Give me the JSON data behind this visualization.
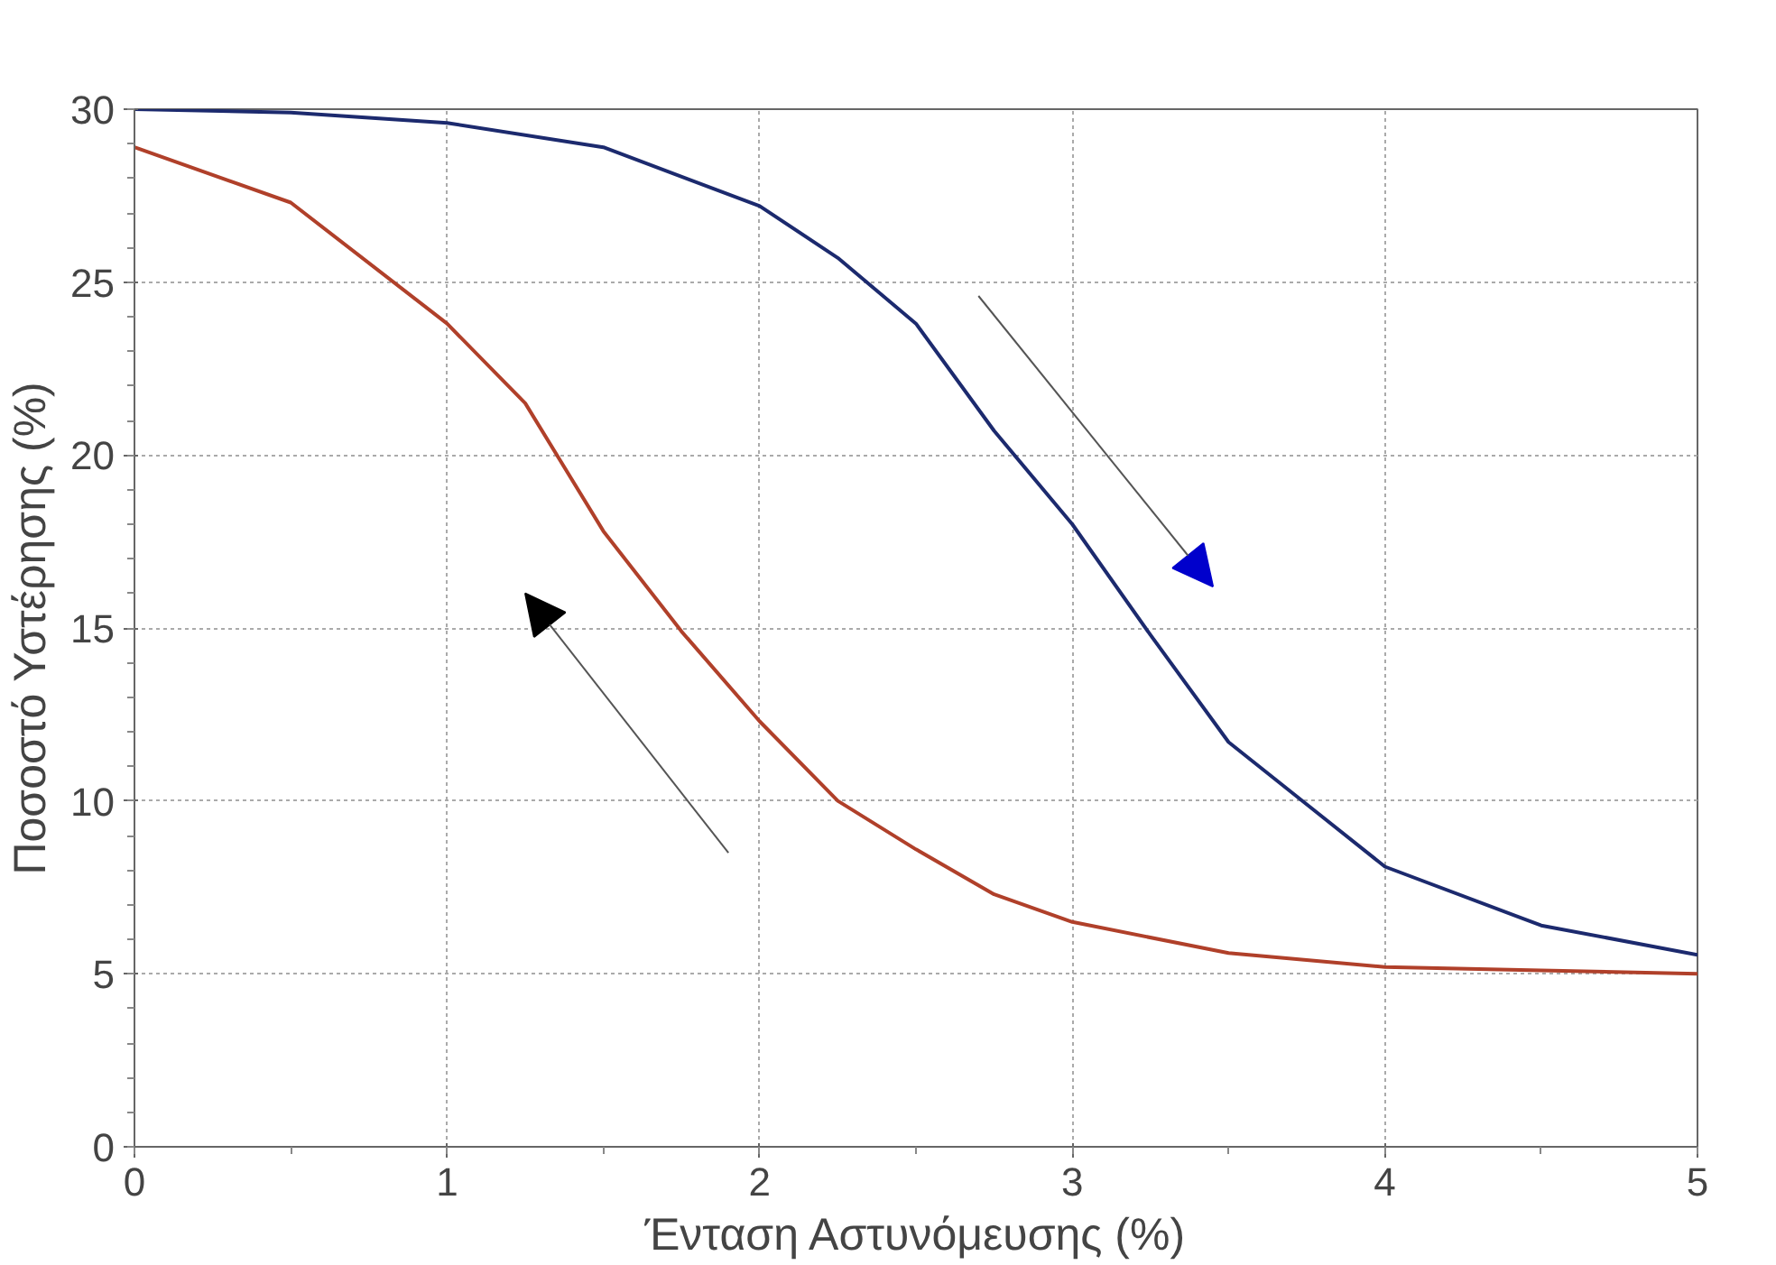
{
  "chart_data": {
    "type": "line",
    "xlabel": "Ένταση Αστυνόμευσης (%)",
    "ylabel": "Ποσοστό Υστέρησης (%)",
    "xlim": [
      0,
      5
    ],
    "ylim": [
      0,
      30
    ],
    "xticks": [
      0,
      1,
      2,
      3,
      4,
      5
    ],
    "yticks": [
      0,
      5,
      10,
      15,
      20,
      25,
      30
    ],
    "grid": true,
    "line_style": "solid",
    "series": [
      {
        "color": "#1c2a6e",
        "x": [
          0,
          0.5,
          1,
          1.5,
          2,
          2.25,
          2.5,
          2.75,
          3,
          3.25,
          3.5,
          3.75,
          4,
          4.5,
          5
        ],
        "values": [
          30,
          29.9,
          29.6,
          28.9,
          27.2,
          25.7,
          23.8,
          20.7,
          18.0,
          14.8,
          11.7,
          9.9,
          8.1,
          6.4,
          5.55
        ]
      },
      {
        "color": "#b0402a",
        "x": [
          0,
          0.5,
          1,
          1.25,
          1.5,
          1.75,
          2,
          2.25,
          2.5,
          2.75,
          3,
          3.5,
          4,
          4.5,
          5
        ],
        "values": [
          28.9,
          27.3,
          23.8,
          21.5,
          17.8,
          14.9,
          12.3,
          10.0,
          8.6,
          7.3,
          6.5,
          5.6,
          5.2,
          5.1,
          5.0
        ]
      }
    ]
  }
}
